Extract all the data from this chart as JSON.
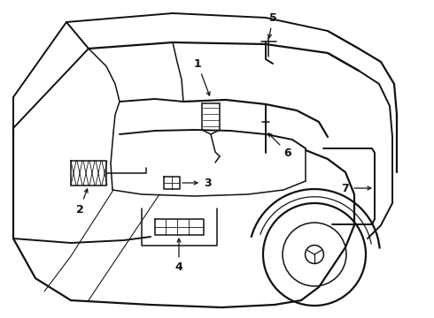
{
  "bg_color": "#ffffff",
  "line_color": "#111111",
  "lw": 1.1,
  "fig_width": 4.9,
  "fig_height": 3.6,
  "dpi": 100
}
